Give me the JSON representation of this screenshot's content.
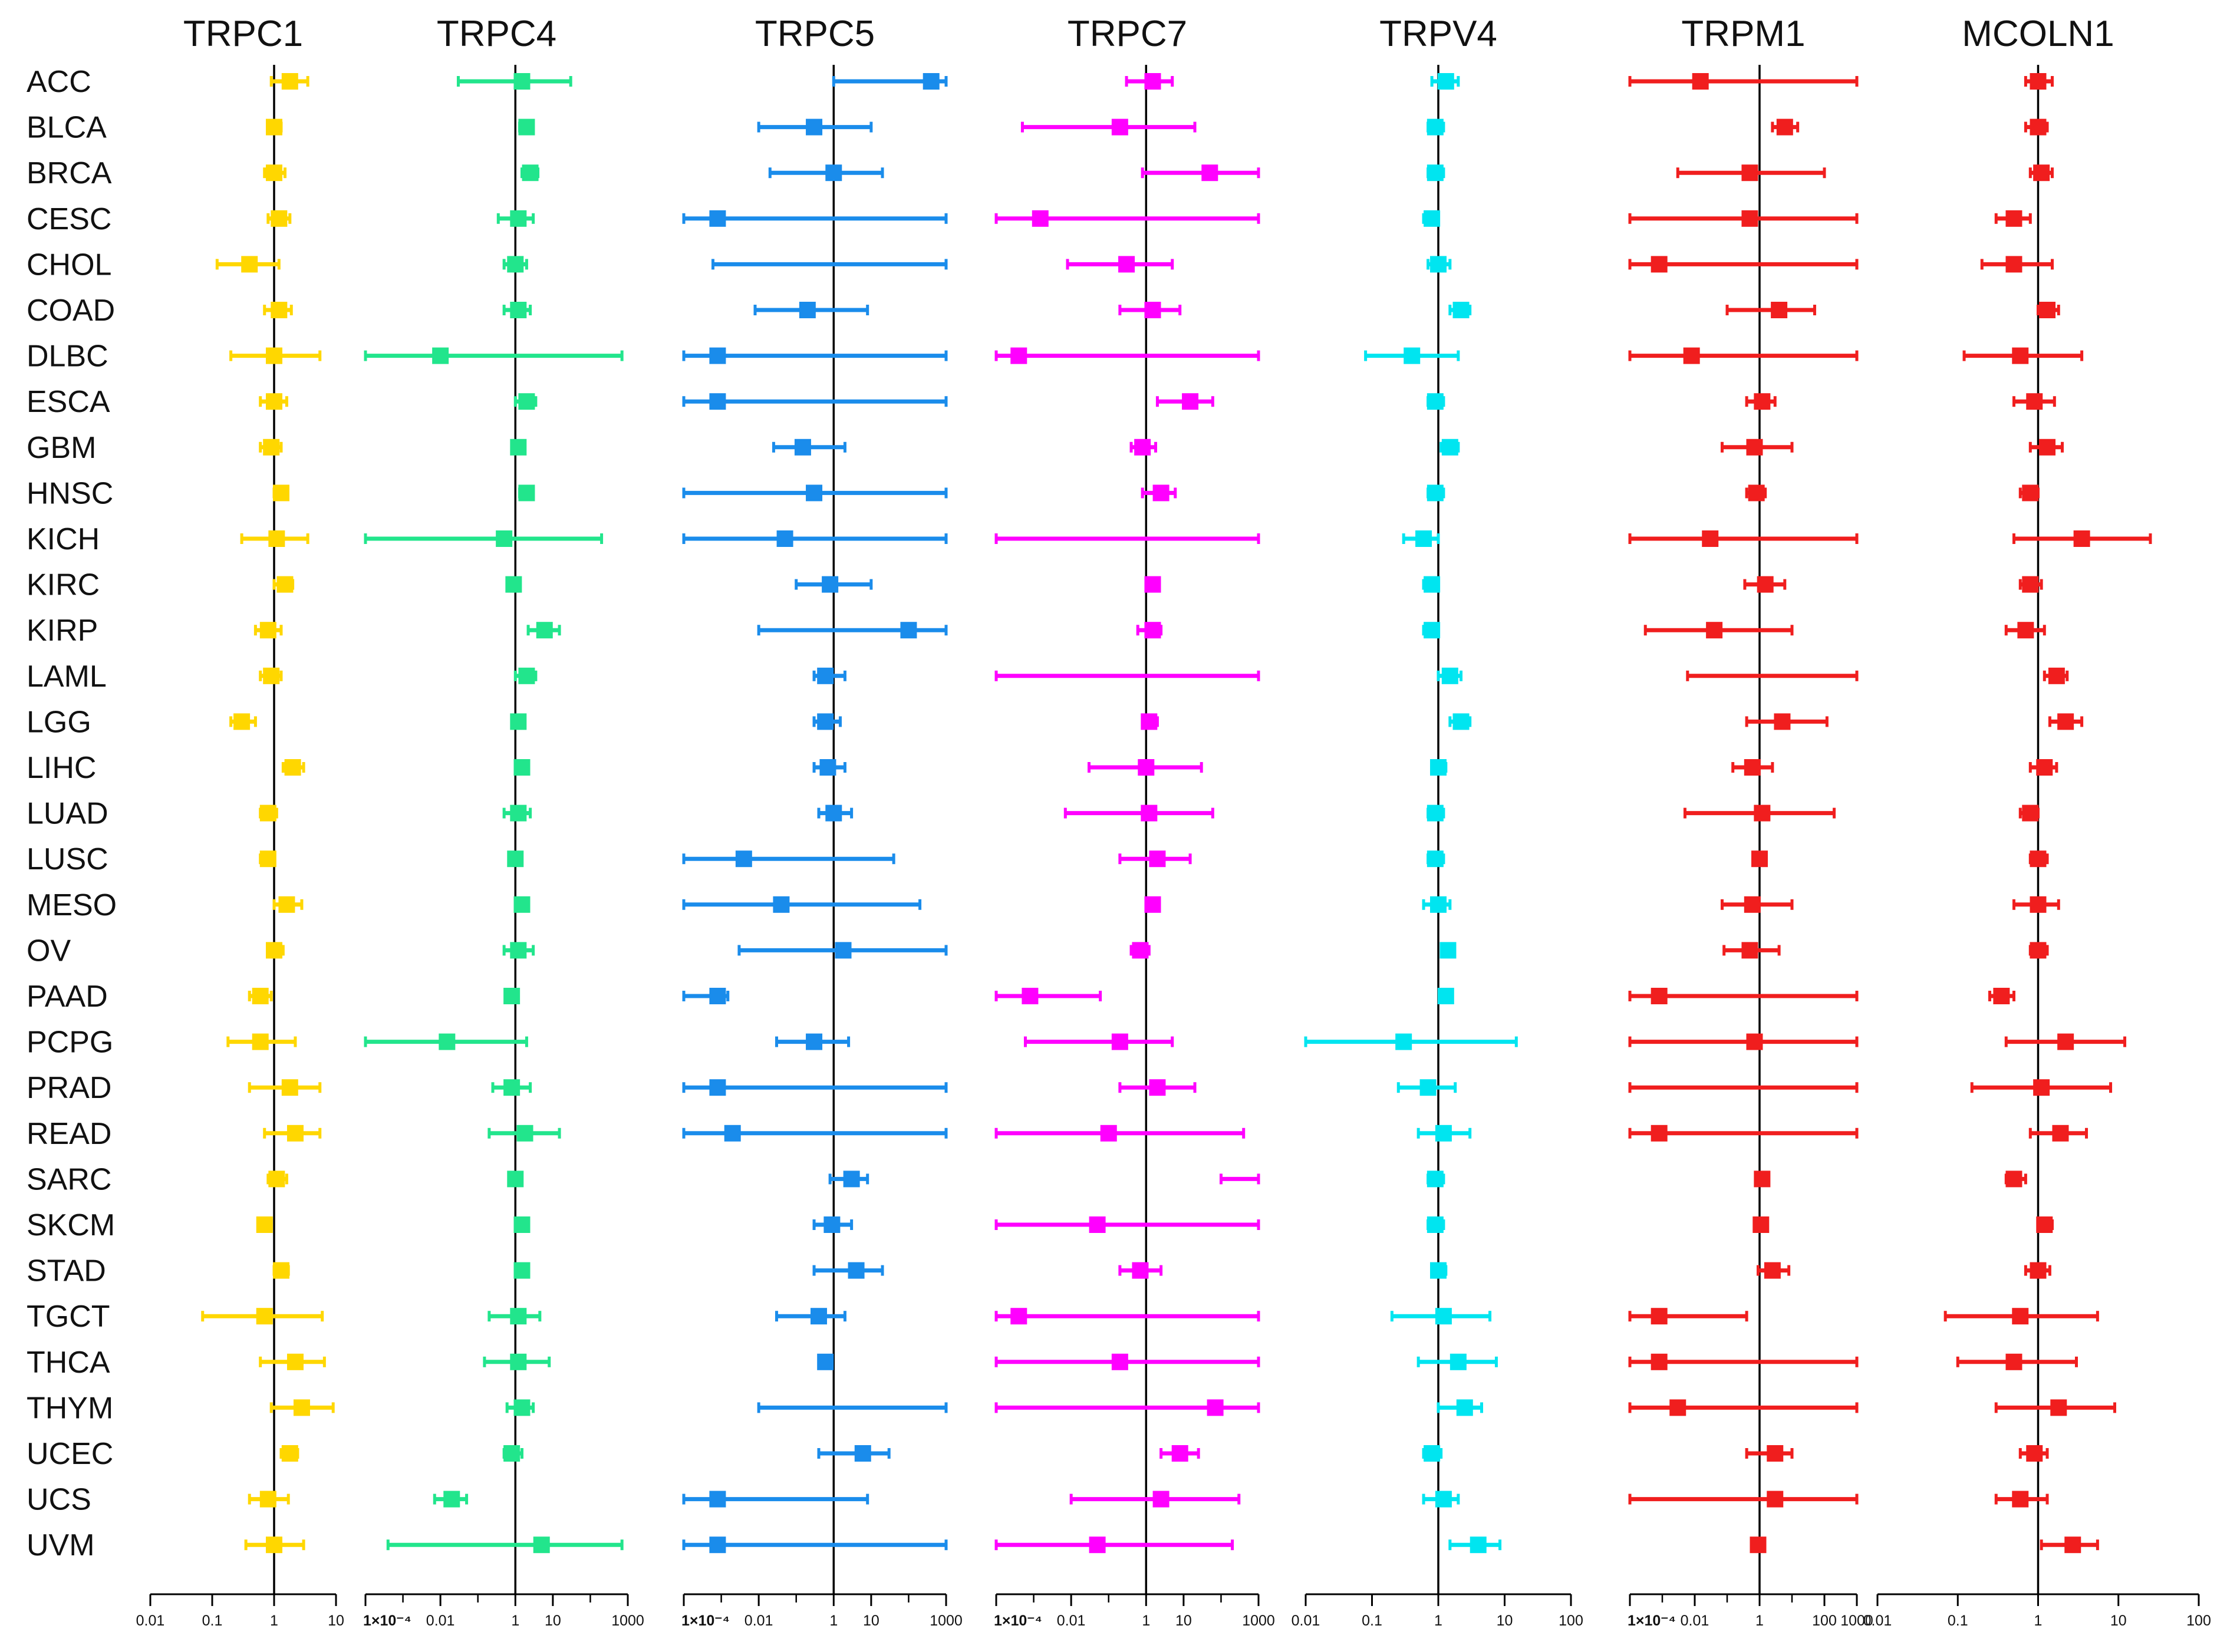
{
  "chart_data": {
    "type": "forest",
    "cancers": [
      "ACC",
      "BLCA",
      "BRCA",
      "CESC",
      "CHOL",
      "COAD",
      "DLBC",
      "ESCA",
      "GBM",
      "HNSC",
      "KICH",
      "KIRC",
      "KIRP",
      "LAML",
      "LGG",
      "LIHC",
      "LUAD",
      "LUSC",
      "MESO",
      "OV",
      "PAAD",
      "PCPG",
      "PRAD",
      "READ",
      "SARC",
      "SKCM",
      "STAD",
      "TGCT",
      "THCA",
      "THYM",
      "UCEC",
      "UCS",
      "UVM"
    ],
    "reference_line": 1,
    "panels": [
      {
        "title": "TRPC1",
        "color": "#FFD700",
        "xlim": [
          0.01,
          10
        ],
        "ticks": [
          "0.01",
          "0.1",
          "1",
          "10"
        ],
        "hr": [
          1.8,
          1.0,
          1.0,
          1.2,
          0.4,
          1.2,
          1.0,
          1.0,
          0.9,
          1.3,
          1.1,
          1.5,
          0.8,
          0.9,
          0.3,
          2.0,
          0.8,
          0.8,
          1.6,
          1.0,
          0.6,
          0.6,
          1.8,
          2.2,
          1.1,
          0.7,
          1.3,
          0.7,
          2.2,
          2.8,
          1.8,
          0.8,
          1.0
        ],
        "low": [
          0.9,
          0.8,
          0.7,
          0.8,
          0.12,
          0.7,
          0.2,
          0.6,
          0.6,
          1.0,
          0.3,
          1.0,
          0.5,
          0.6,
          0.2,
          1.4,
          0.6,
          0.6,
          1.0,
          0.8,
          0.4,
          0.18,
          0.4,
          0.7,
          0.8,
          0.6,
          1.0,
          0.07,
          0.6,
          0.9,
          1.3,
          0.4,
          0.35
        ],
        "high": [
          3.5,
          1.3,
          1.5,
          1.8,
          1.2,
          1.9,
          5.5,
          1.6,
          1.3,
          1.6,
          3.5,
          2.0,
          1.3,
          1.3,
          0.5,
          3.0,
          1.1,
          1.0,
          2.8,
          1.4,
          0.9,
          2.2,
          5.5,
          5.5,
          1.6,
          0.9,
          1.7,
          6.0,
          6.5,
          9.0,
          2.4,
          1.7,
          3.0
        ]
      },
      {
        "title": "TRPC4",
        "color": "#22E58C",
        "xlim": [
          0.0001,
          1000
        ],
        "ticks": [
          "1×10⁻⁴",
          "0.01",
          "1",
          "10",
          "1000"
        ],
        "hr": [
          1.5,
          2.0,
          2.5,
          1.2,
          1.0,
          1.2,
          0.01,
          2.0,
          1.2,
          2.0,
          0.5,
          0.9,
          6.0,
          2.0,
          1.2,
          1.5,
          1.2,
          1.0,
          1.5,
          1.2,
          0.8,
          0.015,
          0.8,
          1.8,
          1.0,
          1.5,
          1.5,
          1.2,
          1.2,
          1.5,
          0.8,
          0.02,
          5.0
        ],
        "low": [
          0.03,
          1.3,
          1.5,
          0.35,
          0.5,
          0.5,
          0.0001,
          1.0,
          0.9,
          1.3,
          0.0001,
          0.7,
          2.2,
          1.0,
          0.9,
          1.0,
          0.5,
          0.7,
          1.0,
          0.5,
          0.6,
          0.0001,
          0.25,
          0.2,
          0.7,
          1.0,
          1.0,
          0.2,
          0.15,
          0.6,
          0.5,
          0.007,
          0.0004
        ],
        "high": [
          30,
          2.8,
          4.0,
          3.0,
          2.0,
          2.5,
          700,
          3.5,
          1.8,
          3.0,
          200,
          1.2,
          15,
          3.5,
          1.6,
          2.0,
          2.5,
          1.5,
          2.0,
          3.0,
          1.1,
          2.0,
          2.5,
          15,
          1.5,
          2.0,
          2.0,
          4.5,
          8.0,
          3.0,
          1.5,
          0.05,
          700
        ]
      },
      {
        "title": "TRPC5",
        "color": "#1A8CEB",
        "xlim": [
          0.0001,
          1000
        ],
        "ticks": [
          "1×10⁻⁴",
          "0.01",
          "1",
          "10",
          "1000"
        ],
        "hr": [
          400,
          0.3,
          1.0,
          0.0008,
          null,
          0.2,
          0.0008,
          0.0008,
          0.15,
          0.3,
          0.05,
          0.8,
          100,
          0.6,
          0.6,
          0.7,
          1.0,
          0.004,
          0.04,
          1.8,
          0.0008,
          0.3,
          0.0008,
          0.002,
          3.0,
          0.9,
          4.0,
          0.4,
          0.6,
          null,
          6.0,
          0.0008,
          0.0008
        ],
        "low": [
          1.0,
          0.01,
          0.02,
          0.0001,
          0.0006,
          0.008,
          0.0001,
          0.0001,
          0.025,
          0.0001,
          0.0001,
          0.1,
          0.01,
          0.3,
          0.3,
          0.3,
          0.4,
          0.0001,
          0.0001,
          0.003,
          0.0001,
          0.03,
          0.0001,
          0.0001,
          0.8,
          0.3,
          0.3,
          0.03,
          0.45,
          0.01,
          0.4,
          0.0001,
          0.0001
        ],
        "high": [
          1000,
          10,
          20,
          1000,
          1000,
          8,
          1000,
          1000,
          2.0,
          1000,
          1000,
          10,
          1000,
          2.0,
          1.5,
          2.0,
          3.0,
          40,
          200,
          1000,
          0.0015,
          2.5,
          1000,
          1000,
          8,
          3.0,
          20,
          2.0,
          0.9,
          1000,
          30,
          8,
          1000
        ]
      },
      {
        "title": "TRPC7",
        "color": "#FF00FF",
        "xlim": [
          0.0001,
          1000
        ],
        "ticks": [
          "1×10⁻⁴",
          "0.01",
          "1",
          "10",
          "1000"
        ],
        "hr": [
          1.5,
          0.2,
          50,
          0.0015,
          0.3,
          1.5,
          0.0004,
          15,
          0.8,
          2.5,
          null,
          1.5,
          1.5,
          null,
          1.2,
          1.0,
          1.2,
          2.0,
          1.5,
          0.7,
          0.0008,
          0.2,
          2.0,
          0.1,
          null,
          0.05,
          0.7,
          0.0004,
          0.2,
          70,
          8,
          2.5,
          0.05
        ],
        "low": [
          0.3,
          0.0005,
          0.8,
          0.0001,
          0.008,
          0.2,
          0.0001,
          2.0,
          0.4,
          0.8,
          0.0001,
          1.1,
          0.6,
          0.0001,
          0.8,
          0.03,
          0.007,
          0.2,
          1.0,
          0.4,
          0.0001,
          0.0006,
          0.2,
          0.0001,
          100,
          0.0001,
          0.2,
          0.0001,
          0.0001,
          0.0001,
          2.5,
          0.01,
          0.0001
        ],
        "high": [
          5,
          20,
          1000,
          1000,
          5,
          8,
          1000,
          60,
          1.8,
          6,
          1000,
          2.0,
          2.5,
          1000,
          2.0,
          30,
          60,
          15,
          2.0,
          1.2,
          0.06,
          5,
          20,
          400,
          1000,
          1000,
          2.5,
          1000,
          1000,
          1000,
          25,
          300,
          200
        ]
      },
      {
        "title": "TRPV4",
        "color": "#00E5F0",
        "xlim": [
          0.01,
          100
        ],
        "ticks": [
          "0.01",
          "0.1",
          "1",
          "10",
          "100"
        ],
        "hr": [
          1.3,
          0.9,
          0.9,
          0.8,
          1.0,
          2.2,
          0.4,
          0.9,
          1.5,
          0.9,
          0.6,
          0.8,
          0.8,
          1.5,
          2.2,
          1.0,
          0.9,
          0.9,
          1.0,
          1.4,
          1.3,
          0.3,
          0.7,
          1.2,
          0.9,
          0.9,
          1.0,
          1.2,
          2.0,
          2.5,
          0.8,
          1.2,
          4.0
        ],
        "low": [
          0.8,
          0.7,
          0.7,
          0.6,
          0.7,
          1.5,
          0.08,
          0.7,
          1.1,
          0.7,
          0.3,
          0.6,
          0.6,
          1.0,
          1.5,
          0.8,
          0.7,
          0.7,
          0.6,
          1.2,
          1.1,
          0.006,
          0.25,
          0.5,
          0.7,
          0.7,
          0.8,
          0.2,
          0.5,
          1.0,
          0.6,
          0.6,
          1.5
        ],
        "high": [
          2.0,
          1.2,
          1.2,
          1.0,
          1.5,
          3.0,
          2.0,
          1.2,
          2.0,
          1.2,
          1.0,
          1.0,
          1.0,
          2.2,
          3.0,
          1.3,
          1.2,
          1.2,
          1.5,
          1.7,
          1.6,
          15,
          1.8,
          3.0,
          1.2,
          1.2,
          1.3,
          6.0,
          7.5,
          4.5,
          1.1,
          2.0,
          8.5
        ]
      },
      {
        "title": "TRPM1",
        "color": "#F01E1E",
        "xlim": [
          0.0001,
          1000
        ],
        "ticks": [
          "1×10⁻⁴",
          "0.01",
          "1",
          "100",
          "1000"
        ],
        "hr": [
          0.015,
          6.0,
          0.5,
          0.5,
          0.0008,
          4.0,
          0.008,
          1.2,
          0.7,
          0.8,
          0.03,
          1.5,
          0.04,
          null,
          5.0,
          0.6,
          1.2,
          1.0,
          0.6,
          0.5,
          0.0008,
          0.7,
          null,
          0.0008,
          1.2,
          1.1,
          2.5,
          0.0008,
          0.0008,
          0.003,
          3.0,
          3.0,
          0.9
        ],
        "low": [
          0.0001,
          2.5,
          0.003,
          0.0001,
          0.0001,
          0.1,
          0.0001,
          0.4,
          0.07,
          0.4,
          0.0001,
          0.35,
          0.0003,
          0.006,
          0.4,
          0.15,
          0.005,
          0.8,
          0.07,
          0.08,
          0.0001,
          0.0001,
          0.0001,
          0.0001,
          0.9,
          0.8,
          0.9,
          0.0001,
          0.0001,
          0.0001,
          0.4,
          0.0001,
          0.7
        ],
        "high": [
          1000,
          15,
          100,
          1000,
          1000,
          50,
          1000,
          3.0,
          10,
          1.5,
          1000,
          6.0,
          10,
          1000,
          120,
          2.5,
          200,
          1.3,
          10,
          4.0,
          1000,
          1000,
          1000,
          1000,
          1.6,
          1.4,
          8.0,
          0.4,
          1000,
          1000,
          10,
          1000,
          1.2
        ]
      },
      {
        "title": "MCOLN1",
        "color": "#F01E1E",
        "xlim": [
          0.01,
          100
        ],
        "ticks": [
          "0.01",
          "0.1",
          "1",
          "10",
          "100"
        ],
        "hr": [
          1.0,
          1.0,
          1.1,
          0.5,
          0.5,
          1.3,
          0.6,
          0.9,
          1.3,
          0.8,
          3.5,
          0.8,
          0.7,
          1.7,
          2.2,
          1.2,
          0.8,
          1.0,
          1.0,
          1.0,
          0.35,
          2.2,
          1.1,
          1.9,
          0.5,
          1.2,
          1.0,
          0.6,
          0.5,
          1.8,
          0.9,
          0.6,
          2.7
        ],
        "low": [
          0.7,
          0.7,
          0.8,
          0.3,
          0.2,
          1.0,
          0.12,
          0.5,
          0.8,
          0.6,
          0.5,
          0.6,
          0.4,
          1.2,
          1.4,
          0.8,
          0.6,
          0.8,
          0.5,
          0.8,
          0.25,
          0.4,
          0.15,
          0.8,
          0.4,
          1.0,
          0.7,
          0.07,
          0.1,
          0.3,
          0.6,
          0.3,
          1.1
        ],
        "high": [
          1.5,
          1.3,
          1.5,
          0.8,
          1.5,
          1.8,
          3.5,
          1.6,
          2.0,
          1.0,
          25,
          1.1,
          1.2,
          2.3,
          3.5,
          1.7,
          1.0,
          1.3,
          1.8,
          1.3,
          0.5,
          12,
          8.0,
          4.0,
          0.7,
          1.5,
          1.4,
          5.5,
          3.0,
          9.0,
          1.3,
          1.3,
          5.5
        ]
      }
    ]
  }
}
